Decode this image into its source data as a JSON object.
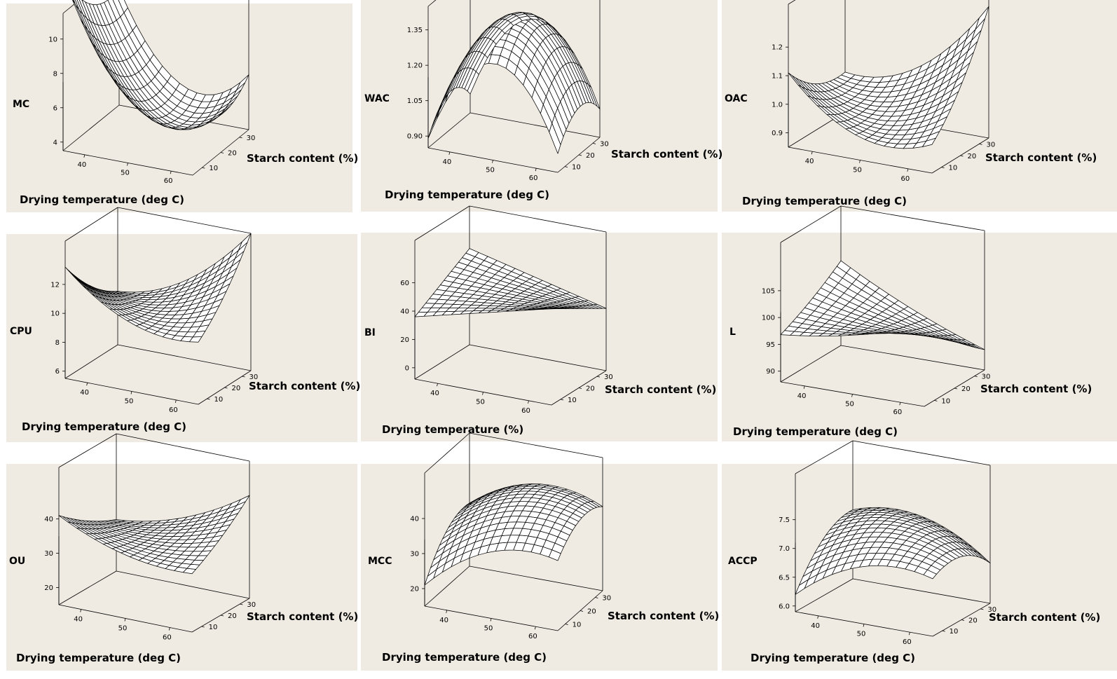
{
  "chart_data": [
    {
      "type": "surface",
      "zlabel": "MC",
      "xlabel": "Drying temperature (deg C)",
      "ylabel": "Starch content (%)",
      "xticks": [
        "40",
        "50",
        "60"
      ],
      "yticks": [
        "10",
        "20",
        "30"
      ],
      "zticks": [
        "4",
        "6",
        "8",
        "10"
      ],
      "xlim": [
        35,
        65
      ],
      "ylim": [
        5,
        35
      ],
      "zlim": [
        3.5,
        11.5
      ],
      "coef": [
        5,
        -2.5,
        -1,
        3.2,
        1.3,
        0.7
      ]
    },
    {
      "type": "surface",
      "zlabel": "WAC",
      "xlabel": "Drying temperature (deg C)",
      "ylabel": "Starch content (%)",
      "xticks": [
        "40",
        "50",
        "60"
      ],
      "yticks": [
        "10",
        "20",
        "30"
      ],
      "zticks": [
        "0.90",
        "1.05",
        "1.20",
        "1.35"
      ],
      "xlim": [
        35,
        65
      ],
      "ylim": [
        5,
        35
      ],
      "zlim": [
        0.85,
        1.45
      ],
      "coef": [
        1.38,
        0.02,
        0.02,
        -0.35,
        -0.1,
        0
      ]
    },
    {
      "type": "surface",
      "zlabel": "OAC",
      "xlabel": "Drying temperature (deg C)",
      "ylabel": "Starch content (%)",
      "xticks": [
        "40",
        "50",
        "60"
      ],
      "yticks": [
        "10",
        "20",
        "30"
      ],
      "zticks": [
        "0.9",
        "1.0",
        "1.1",
        "1.2"
      ],
      "xlim": [
        35,
        65
      ],
      "ylim": [
        5,
        35
      ],
      "zlim": [
        0.85,
        1.35
      ],
      "coef": [
        0.95,
        0.04,
        0.06,
        0.1,
        0.04,
        0.12
      ]
    },
    {
      "type": "surface",
      "zlabel": "CPU",
      "xlabel": "Drying temperature (deg C)",
      "ylabel": "Starch content (%)",
      "xticks": [
        "40",
        "50",
        "60"
      ],
      "yticks": [
        "10",
        "20",
        "30"
      ],
      "zticks": [
        "6",
        "8",
        "10",
        "12"
      ],
      "xlim": [
        35,
        65
      ],
      "ylim": [
        5,
        35
      ],
      "zlim": [
        5.5,
        15
      ],
      "coef": [
        10,
        0.6,
        0.3,
        1.3,
        0.5,
        2.3
      ]
    },
    {
      "type": "surface",
      "zlabel": "BI",
      "xlabel": "Drying temperature (%)",
      "ylabel": "Starch content (%)",
      "xticks": [
        "40",
        "50",
        "60"
      ],
      "yticks": [
        "10",
        "20",
        "30"
      ],
      "zticks": [
        "0",
        "20",
        "40",
        "60"
      ],
      "xlim": [
        35,
        65
      ],
      "ylim": [
        5,
        35
      ],
      "zlim": [
        -8,
        90
      ],
      "coef": [
        48,
        0,
        0,
        0,
        0,
        -12
      ]
    },
    {
      "type": "surface",
      "zlabel": "L",
      "xlabel": "Drying temperature (deg C)",
      "ylabel": "Starch content (%)",
      "xticks": [
        "40",
        "50",
        "60"
      ],
      "yticks": [
        "10",
        "20",
        "30"
      ],
      "zticks": [
        "90",
        "95",
        "100",
        "105"
      ],
      "xlim": [
        35,
        65
      ],
      "ylim": [
        5,
        35
      ],
      "zlim": [
        88,
        114
      ],
      "coef": [
        97.5,
        -1.5,
        -1,
        0.8,
        0.5,
        -4.5
      ]
    },
    {
      "type": "surface",
      "zlabel": "OU",
      "xlabel": "Drying temperature (deg C)",
      "ylabel": "Starch content (%)",
      "xticks": [
        "40",
        "50",
        "60"
      ],
      "yticks": [
        "10",
        "20",
        "30"
      ],
      "zticks": [
        "20",
        "30",
        "40"
      ],
      "xlim": [
        35,
        65
      ],
      "ylim": [
        5,
        35
      ],
      "zlim": [
        15,
        55
      ],
      "coef": [
        33,
        1.5,
        0.5,
        3,
        1,
        6
      ]
    },
    {
      "type": "surface",
      "zlabel": "MCC",
      "xlabel": "Drying temperature (deg C)",
      "ylabel": "Starch content (%)",
      "xticks": [
        "40",
        "50",
        "60"
      ],
      "yticks": [
        "10",
        "20",
        "30"
      ],
      "zticks": [
        "20",
        "30",
        "40"
      ],
      "xlim": [
        35,
        65
      ],
      "ylim": [
        5,
        35
      ],
      "zlim": [
        15,
        53
      ],
      "coef": [
        42,
        5,
        4,
        -6,
        -4,
        -2
      ]
    },
    {
      "type": "surface",
      "zlabel": "ACCP",
      "xlabel": "Drying temperature (deg C)",
      "ylabel": "Starch content (%)",
      "xticks": [
        "40",
        "50",
        "60"
      ],
      "yticks": [
        "10",
        "20",
        "30"
      ],
      "zticks": [
        "6.0",
        "6.5",
        "7.0",
        "7.5"
      ],
      "xlim": [
        35,
        65
      ],
      "ylim": [
        5,
        35
      ],
      "zlim": [
        5.9,
        8.3
      ],
      "coef": [
        7.3,
        0.05,
        0.15,
        -0.35,
        -0.25,
        -0.3
      ]
    }
  ],
  "layout": [
    {
      "panel": [
        9,
        5,
        494,
        298
      ],
      "box": {
        "p0": [
          90,
          215
        ],
        "ex": [
          185,
          35
        ],
        "ey": [
          80,
          -65
        ],
        "ez": [
          0,
          -196
        ]
      },
      "zl": [
        18,
        153
      ],
      "xl": [
        28,
        290
      ],
      "yl": [
        352,
        231
      ]
    },
    {
      "panel": [
        515,
        0,
        509,
        302
      ],
      "box": {
        "p0": [
          611,
          211
        ],
        "ex": [
          185,
          35
        ],
        "ey": [
          60,
          -50
        ],
        "ez": [
          0,
          -202
        ]
      },
      "zl": [
        520,
        145
      ],
      "xl": [
        549,
        283
      ],
      "yl": [
        872,
        225
      ]
    },
    {
      "panel": [
        1030,
        0,
        564,
        302
      ],
      "box": {
        "p0": [
          1125,
          210
        ],
        "ex": [
          205,
          37
        ],
        "ey": [
          81,
          -50
        ],
        "ez": [
          0,
          -204
        ]
      },
      "zl": [
        1034,
        145
      ],
      "xl": [
        1059,
        292
      ],
      "yl": [
        1406,
        230
      ]
    },
    {
      "panel": [
        9,
        334,
        501,
        297
      ],
      "box": {
        "p0": [
          93,
          540
        ],
        "ex": [
          190,
          37
        ],
        "ey": [
          75,
          -48
        ],
        "ez": [
          0,
          -196
        ]
      },
      "zl": [
        14,
        477
      ],
      "xl": [
        31,
        614
      ],
      "yl": [
        355,
        556
      ]
    },
    {
      "panel": [
        515,
        332,
        509,
        298
      ],
      "box": {
        "p0": [
          592,
          541
        ],
        "ex": [
          195,
          37
        ],
        "ey": [
          78,
          -49
        ],
        "ez": [
          0,
          -198
        ]
      },
      "zl": [
        520,
        479
      ],
      "xl": [
        545,
        618
      ],
      "yl": [
        863,
        561
      ]
    },
    {
      "panel": [
        1030,
        332,
        564,
        298
      ],
      "box": {
        "p0": [
          1114,
          545
        ],
        "ex": [
          205,
          35
        ],
        "ey": [
          86,
          -52
        ],
        "ez": [
          0,
          -199
        ]
      },
      "zl": [
        1041,
        478
      ],
      "xl": [
        1046,
        621
      ],
      "yl": [
        1399,
        560
      ]
    },
    {
      "panel": [
        9,
        662,
        501,
        295
      ],
      "box": {
        "p0": [
          84,
          863
        ],
        "ex": [
          190,
          39
        ],
        "ey": [
          82,
          -48
        ],
        "ez": [
          0,
          -196
        ]
      },
      "zl": [
        13,
        805
      ],
      "xl": [
        23,
        944
      ],
      "yl": [
        352,
        885
      ]
    },
    {
      "panel": [
        515,
        662,
        509,
        295
      ],
      "box": {
        "p0": [
          606,
          865
        ],
        "ex": [
          190,
          35
        ],
        "ey": [
          64,
          -57
        ],
        "ez": [
          0,
          -190
        ]
      },
      "zl": [
        525,
        805
      ],
      "xl": [
        545,
        943
      ],
      "yl": [
        867,
        884
      ]
    },
    {
      "panel": [
        1030,
        662,
        564,
        295
      ],
      "box": {
        "p0": [
          1135,
          873
        ],
        "ex": [
          196,
          35
        ],
        "ey": [
          82,
          -47
        ],
        "ez": [
          0,
          -197
        ]
      },
      "zl": [
        1039,
        805
      ],
      "xl": [
        1071,
        944
      ],
      "yl": [
        1411,
        886
      ]
    }
  ]
}
